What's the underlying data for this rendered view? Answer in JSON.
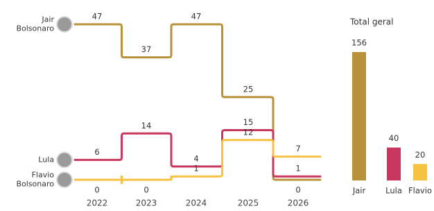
{
  "chart_data": [
    {
      "type": "step-line",
      "categories": [
        "2022",
        "2023",
        "2024",
        "2025",
        "2026"
      ],
      "series": [
        {
          "name": "Jair Bolsonaro",
          "color": "#b8913a",
          "values": [
            47,
            37,
            47,
            25,
            0
          ]
        },
        {
          "name": "Lula",
          "color": "#c8385e",
          "values": [
            6,
            14,
            4,
            15,
            1
          ]
        },
        {
          "name": "Flavio Bolsonaro",
          "color": "#f5c242",
          "values": [
            0,
            0,
            1,
            12,
            7
          ]
        }
      ]
    },
    {
      "type": "bar",
      "title": "Total geral",
      "categories": [
        "Jair",
        "Lula",
        "Flavio"
      ],
      "values": [
        156,
        40,
        20
      ],
      "colors": [
        "#b8913a",
        "#c8385e",
        "#f5c242"
      ]
    }
  ]
}
